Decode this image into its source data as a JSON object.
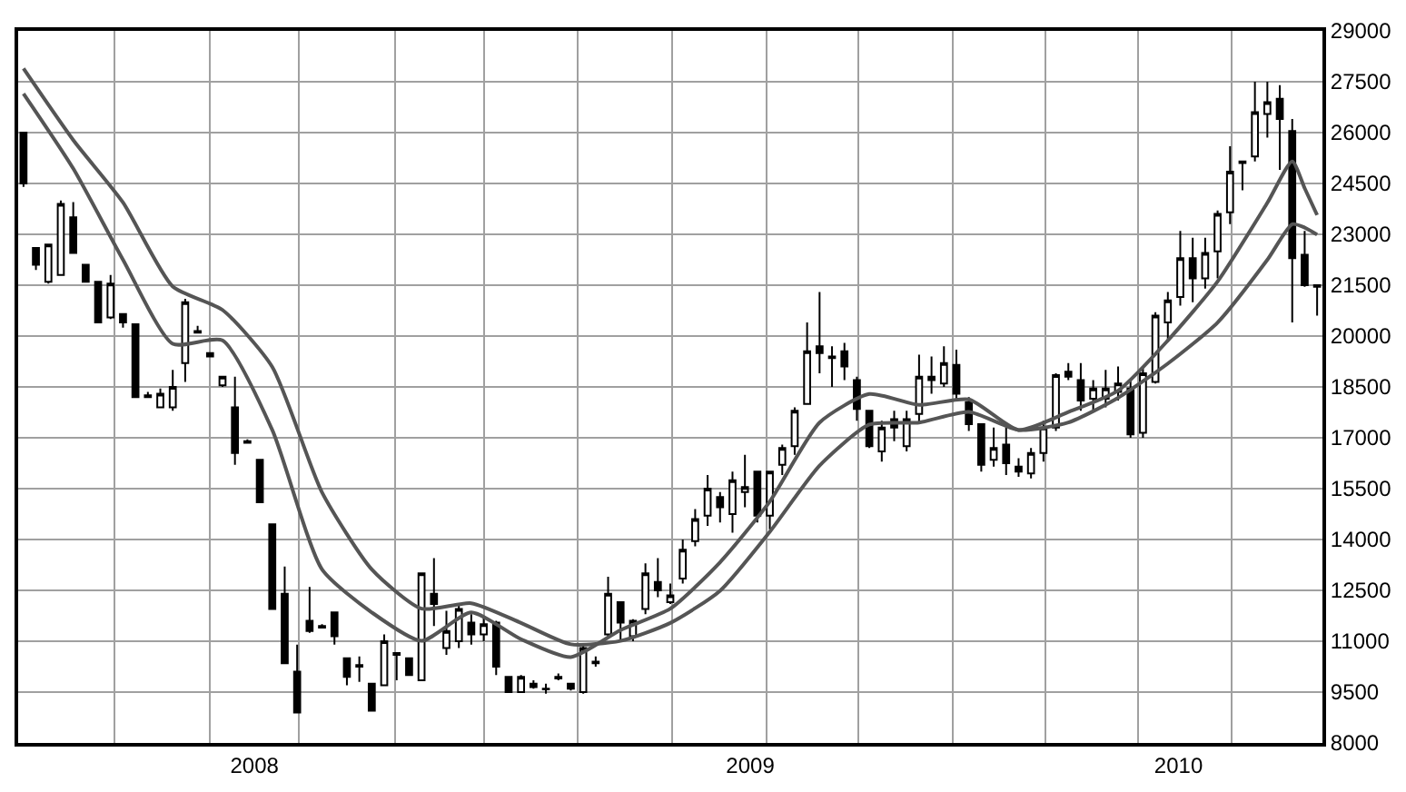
{
  "chart_data": {
    "type": "candlestick",
    "x": [
      "2008-05-19",
      "2008-05-26",
      "2008-06-02",
      "2008-06-09",
      "2008-06-16",
      "2008-06-23",
      "2008-06-30",
      "2008-07-07",
      "2008-07-14",
      "2008-07-21",
      "2008-07-28",
      "2008-08-04",
      "2008-08-11",
      "2008-08-18",
      "2008-08-25",
      "2008-09-01",
      "2008-09-08",
      "2008-09-15",
      "2008-09-22",
      "2008-09-29",
      "2008-10-06",
      "2008-10-13",
      "2008-10-20",
      "2008-10-27",
      "2008-11-03",
      "2008-11-10",
      "2008-11-17",
      "2008-11-24",
      "2008-12-01",
      "2008-12-08",
      "2008-12-15",
      "2008-12-22",
      "2008-12-29",
      "2009-01-05",
      "2009-01-12",
      "2009-01-19",
      "2009-01-26",
      "2009-02-02",
      "2009-02-09",
      "2009-02-16",
      "2009-02-23",
      "2009-03-02",
      "2009-03-09",
      "2009-03-16",
      "2009-03-23",
      "2009-03-30",
      "2009-04-06",
      "2009-04-13",
      "2009-04-20",
      "2009-04-27",
      "2009-05-04",
      "2009-05-11",
      "2009-05-18",
      "2009-05-25",
      "2009-06-01",
      "2009-06-08",
      "2009-06-15",
      "2009-06-22",
      "2009-06-29",
      "2009-07-06",
      "2009-07-13",
      "2009-07-20",
      "2009-07-27",
      "2009-08-03",
      "2009-08-10",
      "2009-08-17",
      "2009-08-24",
      "2009-08-31",
      "2009-09-07",
      "2009-09-14",
      "2009-09-21",
      "2009-09-28",
      "2009-10-05",
      "2009-10-12",
      "2009-10-19",
      "2009-10-26",
      "2009-11-02",
      "2009-11-09",
      "2009-11-16",
      "2009-11-23",
      "2009-11-30",
      "2009-12-07",
      "2009-12-14",
      "2009-12-21",
      "2009-12-28",
      "2010-01-04",
      "2010-01-11",
      "2010-01-18",
      "2010-01-25",
      "2010-02-01",
      "2010-02-08",
      "2010-02-15",
      "2010-02-22",
      "2010-03-01",
      "2010-03-08",
      "2010-03-15",
      "2010-03-22",
      "2010-03-29",
      "2010-04-05",
      "2010-04-12",
      "2010-04-19",
      "2010-04-26",
      "2010-05-03",
      "2010-05-10",
      "2010-05-17"
    ],
    "ohlc": [
      [
        26000,
        26000,
        24400,
        24500
      ],
      [
        22600,
        22600,
        21950,
        22100
      ],
      [
        21600,
        22700,
        21550,
        22700
      ],
      [
        21800,
        24000,
        21800,
        23900
      ],
      [
        23500,
        23950,
        22450,
        22450
      ],
      [
        22100,
        22100,
        21600,
        21600
      ],
      [
        21600,
        21600,
        20400,
        20400
      ],
      [
        20550,
        21800,
        20500,
        21550
      ],
      [
        20650,
        20650,
        20250,
        20400
      ],
      [
        20350,
        20350,
        18200,
        18200
      ],
      [
        18200,
        18350,
        18200,
        18250
      ],
      [
        17900,
        18450,
        17900,
        18300
      ],
      [
        17900,
        19000,
        17800,
        18500
      ],
      [
        19200,
        21100,
        18650,
        21000
      ],
      [
        20100,
        20300,
        20100,
        20150
      ],
      [
        19500,
        19500,
        19400,
        19400
      ],
      [
        18550,
        18800,
        18500,
        18800
      ],
      [
        17900,
        18800,
        16200,
        16550
      ],
      [
        16900,
        16950,
        16850,
        16850
      ],
      [
        16350,
        16350,
        15100,
        15100
      ],
      [
        14450,
        14450,
        11950,
        11950
      ],
      [
        12400,
        13200,
        10350,
        10350
      ],
      [
        10100,
        10900,
        8900,
        8900
      ],
      [
        11600,
        12600,
        11250,
        11300
      ],
      [
        11400,
        11500,
        11400,
        11450
      ],
      [
        11850,
        11850,
        10900,
        11150
      ],
      [
        10500,
        10500,
        9700,
        9950
      ],
      [
        10300,
        10550,
        9800,
        10250
      ],
      [
        9750,
        9750,
        8950,
        8950
      ],
      [
        9700,
        11200,
        9700,
        11000
      ],
      [
        10650,
        10650,
        9850,
        10600
      ],
      [
        10500,
        10500,
        10000,
        10000
      ],
      [
        9850,
        13000,
        9850,
        13000
      ],
      [
        12400,
        13450,
        11450,
        12100
      ],
      [
        10800,
        11900,
        10600,
        11300
      ],
      [
        11000,
        12100,
        10800,
        11950
      ],
      [
        11550,
        11800,
        10900,
        11200
      ],
      [
        11200,
        11700,
        11000,
        11500
      ],
      [
        11550,
        11600,
        10000,
        10250
      ],
      [
        9950,
        9950,
        9500,
        9500
      ],
      [
        9500,
        10000,
        9500,
        9950
      ],
      [
        9650,
        9850,
        9600,
        9750
      ],
      [
        9600,
        9750,
        9450,
        9580
      ],
      [
        9900,
        10050,
        9850,
        9950
      ],
      [
        9750,
        9750,
        9550,
        9600
      ],
      [
        9500,
        10900,
        9450,
        10800
      ],
      [
        10350,
        10550,
        10250,
        10400
      ],
      [
        11200,
        12900,
        11100,
        12400
      ],
      [
        12150,
        12150,
        11000,
        11550
      ],
      [
        11150,
        11650,
        11000,
        11600
      ],
      [
        11950,
        13300,
        11800,
        13000
      ],
      [
        12750,
        13450,
        12300,
        12500
      ],
      [
        12150,
        12700,
        12100,
        12350
      ],
      [
        12850,
        14000,
        12700,
        13700
      ],
      [
        13950,
        14900,
        13800,
        14600
      ],
      [
        14700,
        15900,
        14400,
        15500
      ],
      [
        15250,
        15400,
        14500,
        14950
      ],
      [
        14750,
        16000,
        14200,
        15750
      ],
      [
        15400,
        16500,
        14950,
        15550
      ],
      [
        16000,
        16000,
        14500,
        14700
      ],
      [
        14700,
        16000,
        14300,
        16000
      ],
      [
        16200,
        16800,
        15900,
        16700
      ],
      [
        16750,
        17900,
        16500,
        17800
      ],
      [
        18000,
        20400,
        18000,
        19550
      ],
      [
        19700,
        21300,
        18900,
        19500
      ],
      [
        19400,
        19700,
        18500,
        19350
      ],
      [
        19550,
        19800,
        18700,
        19100
      ],
      [
        18700,
        18800,
        17500,
        17850
      ],
      [
        17800,
        17800,
        16700,
        16750
      ],
      [
        16600,
        17500,
        16300,
        17300
      ],
      [
        17550,
        17800,
        16900,
        17300
      ],
      [
        16750,
        17800,
        16600,
        17550
      ],
      [
        17700,
        19450,
        17400,
        18800
      ],
      [
        18800,
        19400,
        18300,
        18700
      ],
      [
        18600,
        19700,
        18500,
        19200
      ],
      [
        19150,
        19600,
        18150,
        18300
      ],
      [
        18050,
        18200,
        17200,
        17400
      ],
      [
        17400,
        17400,
        16000,
        16200
      ],
      [
        16350,
        17300,
        16150,
        16700
      ],
      [
        16800,
        17300,
        15900,
        16250
      ],
      [
        16150,
        16400,
        15850,
        16000
      ],
      [
        15950,
        16700,
        15800,
        16550
      ],
      [
        16550,
        17500,
        16300,
        17300
      ],
      [
        17300,
        18900,
        17200,
        18850
      ],
      [
        18950,
        19200,
        18700,
        18800
      ],
      [
        18700,
        19200,
        17800,
        18100
      ],
      [
        18150,
        18700,
        17800,
        18450
      ],
      [
        18150,
        19000,
        17900,
        18450
      ],
      [
        18350,
        19100,
        18100,
        18600
      ],
      [
        18450,
        18700,
        17000,
        17100
      ],
      [
        17150,
        19100,
        17000,
        18900
      ],
      [
        18650,
        20700,
        18600,
        20600
      ],
      [
        20400,
        21300,
        19900,
        21050
      ],
      [
        21150,
        23100,
        20900,
        22300
      ],
      [
        22300,
        22900,
        21000,
        21700
      ],
      [
        21700,
        22900,
        21400,
        22450
      ],
      [
        22500,
        23700,
        21700,
        23600
      ],
      [
        23650,
        25600,
        23300,
        24850
      ],
      [
        25150,
        25150,
        24300,
        25100
      ],
      [
        25300,
        27500,
        25150,
        26600
      ],
      [
        26550,
        27500,
        25850,
        26900
      ],
      [
        27000,
        27400,
        24900,
        26400
      ],
      [
        26050,
        26400,
        20400,
        22300
      ],
      [
        22400,
        23100,
        21450,
        21500
      ],
      [
        21500,
        21500,
        20600,
        21450
      ]
    ],
    "series": [
      {
        "type": "line",
        "color": "#555555",
        "x": [
          "2008-05-19",
          "2008-06-16",
          "2008-07-14",
          "2008-08-11",
          "2008-09-08",
          "2008-10-06",
          "2008-11-03",
          "2008-12-01",
          "2008-12-29",
          "2009-01-26",
          "2009-02-23",
          "2009-03-23",
          "2009-04-20",
          "2009-05-18",
          "2009-06-15",
          "2009-07-13",
          "2009-08-10",
          "2009-09-07",
          "2009-10-05",
          "2009-11-02",
          "2009-11-30",
          "2009-12-28",
          "2010-01-25",
          "2010-02-22",
          "2010-03-22",
          "2010-04-19",
          "2010-05-03",
          "2010-05-10",
          "2010-05-17"
        ],
        "values": [
          27890,
          25780,
          23940,
          21460,
          20770,
          19090,
          15390,
          13120,
          11960,
          12120,
          11540,
          10910,
          11010,
          11540,
          12490,
          14230,
          16180,
          17390,
          17450,
          17760,
          17230,
          17450,
          18180,
          19190,
          20400,
          22250,
          23300,
          23200,
          22990
        ]
      },
      {
        "type": "line",
        "color": "#555555",
        "x": [
          "2008-05-19",
          "2008-06-16",
          "2008-07-14",
          "2008-08-11",
          "2008-09-08",
          "2008-10-06",
          "2008-11-03",
          "2008-12-01",
          "2008-12-29",
          "2009-01-26",
          "2009-02-23",
          "2009-03-23",
          "2009-04-20",
          "2009-05-18",
          "2009-06-15",
          "2009-07-13",
          "2009-08-10",
          "2009-09-07",
          "2009-10-05",
          "2009-11-02",
          "2009-11-30",
          "2009-12-28",
          "2010-01-25",
          "2010-02-22",
          "2010-03-22",
          "2010-04-19",
          "2010-05-03",
          "2010-05-10",
          "2010-05-17"
        ],
        "values": [
          27150,
          24940,
          22250,
          19770,
          19870,
          17230,
          13120,
          11850,
          11010,
          11850,
          11060,
          10530,
          11330,
          11960,
          13330,
          15120,
          17450,
          18290,
          17970,
          18130,
          17230,
          17760,
          18390,
          19870,
          21610,
          23930,
          25150,
          24360,
          23570
        ]
      }
    ],
    "xlim": [
      "2008-05-16",
      "2010-05-20"
    ],
    "xticks": [
      {
        "value": "2008-07-09",
        "label": null
      },
      {
        "value": "2008-09-01",
        "label": null
      },
      {
        "value": "2008-09-26",
        "label": "2008"
      },
      {
        "value": "2008-10-21",
        "label": null
      },
      {
        "value": "2008-12-14",
        "label": null
      },
      {
        "value": "2009-02-02",
        "label": null
      },
      {
        "value": "2009-03-27",
        "label": null
      },
      {
        "value": "2009-05-19",
        "label": null
      },
      {
        "value": "2009-07-02",
        "label": "2009"
      },
      {
        "value": "2009-07-11",
        "label": null
      },
      {
        "value": "2009-09-01",
        "label": null
      },
      {
        "value": "2009-10-24",
        "label": null
      },
      {
        "value": "2009-12-15",
        "label": null
      },
      {
        "value": "2010-02-05",
        "label": null
      },
      {
        "value": "2010-02-28",
        "label": "2010"
      },
      {
        "value": "2010-03-30",
        "label": null
      }
    ],
    "ylim": [
      8000,
      29000
    ],
    "yticks": [
      8000,
      9500,
      11000,
      12500,
      14000,
      15500,
      17000,
      18500,
      20000,
      21500,
      23000,
      24500,
      26000,
      27500,
      29000
    ],
    "grid": true,
    "marker": "none",
    "line_style": "solid"
  }
}
